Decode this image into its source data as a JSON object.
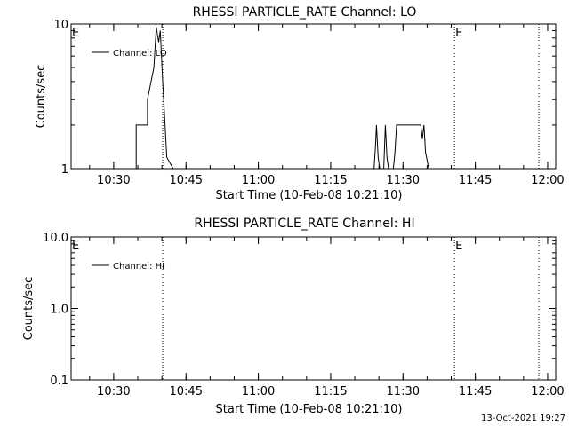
{
  "footer_timestamp": "13-Oct-2021 19:27",
  "chart_data": [
    {
      "type": "line",
      "title": "RHESSI PARTICLE_RATE Channel: LO",
      "xlabel": "Start Time (10-Feb-08 10:21:10)",
      "ylabel": "Counts/sec",
      "yscale": "log",
      "ylim": [
        1,
        10
      ],
      "yticks": [
        "1",
        "10"
      ],
      "xlim": [
        "10:21:10",
        "12:01:40"
      ],
      "xticks": [
        "10:30",
        "10:45",
        "11:00",
        "11:15",
        "11:30",
        "11:45",
        "12:00"
      ],
      "legend": "top-left",
      "series": [
        {
          "name": "Channel: LO",
          "x": [
            "10:34:40",
            "10:34:40",
            "10:37:00",
            "10:37:00",
            "10:38:20",
            "10:38:50",
            "10:39:20",
            "10:39:40",
            "10:40:10",
            "10:40:40",
            "10:41:00",
            "10:42:20",
            "11:24:00",
            "11:24:20",
            "11:24:30",
            "11:24:50",
            "11:25:10",
            "11:26:00",
            "11:26:20",
            "11:26:40",
            "11:27:00",
            "11:28:00",
            "11:28:20",
            "11:28:40",
            "11:29:00",
            "11:29:10",
            "11:30:00",
            "11:30:10",
            "11:33:40",
            "11:34:00",
            "11:34:20",
            "11:34:40",
            "11:35:20"
          ],
          "y": [
            1,
            2,
            2,
            3,
            5,
            9.5,
            7.5,
            9,
            4,
            2,
            1.2,
            1,
            1,
            1.5,
            2,
            1.2,
            1,
            1,
            2,
            1.2,
            1,
            1,
            1.3,
            2,
            2,
            2,
            2,
            2,
            2,
            1.6,
            2,
            1.3,
            1
          ]
        }
      ],
      "markers": [
        {
          "x": "10:40:10",
          "label": ""
        },
        {
          "x": "11:40:40",
          "label": "E"
        },
        {
          "x": "11:58:10",
          "label": ""
        }
      ],
      "corner_label": "E"
    },
    {
      "type": "line",
      "title": "RHESSI PARTICLE_RATE Channel: HI",
      "xlabel": "Start Time (10-Feb-08 10:21:10)",
      "ylabel": "Counts/sec",
      "yscale": "log",
      "ylim": [
        0.1,
        10
      ],
      "yticks": [
        "0.1",
        "1.0",
        "10.0"
      ],
      "xlim": [
        "10:21:10",
        "12:01:40"
      ],
      "xticks": [
        "10:30",
        "10:45",
        "11:00",
        "11:15",
        "11:30",
        "11:45",
        "12:00"
      ],
      "legend": "top-left",
      "series": [
        {
          "name": "Channel: HI",
          "x": [],
          "y": []
        }
      ],
      "markers": [
        {
          "x": "10:40:10",
          "label": ""
        },
        {
          "x": "11:40:40",
          "label": "E"
        },
        {
          "x": "11:58:10",
          "label": ""
        }
      ],
      "corner_label": "E"
    }
  ]
}
